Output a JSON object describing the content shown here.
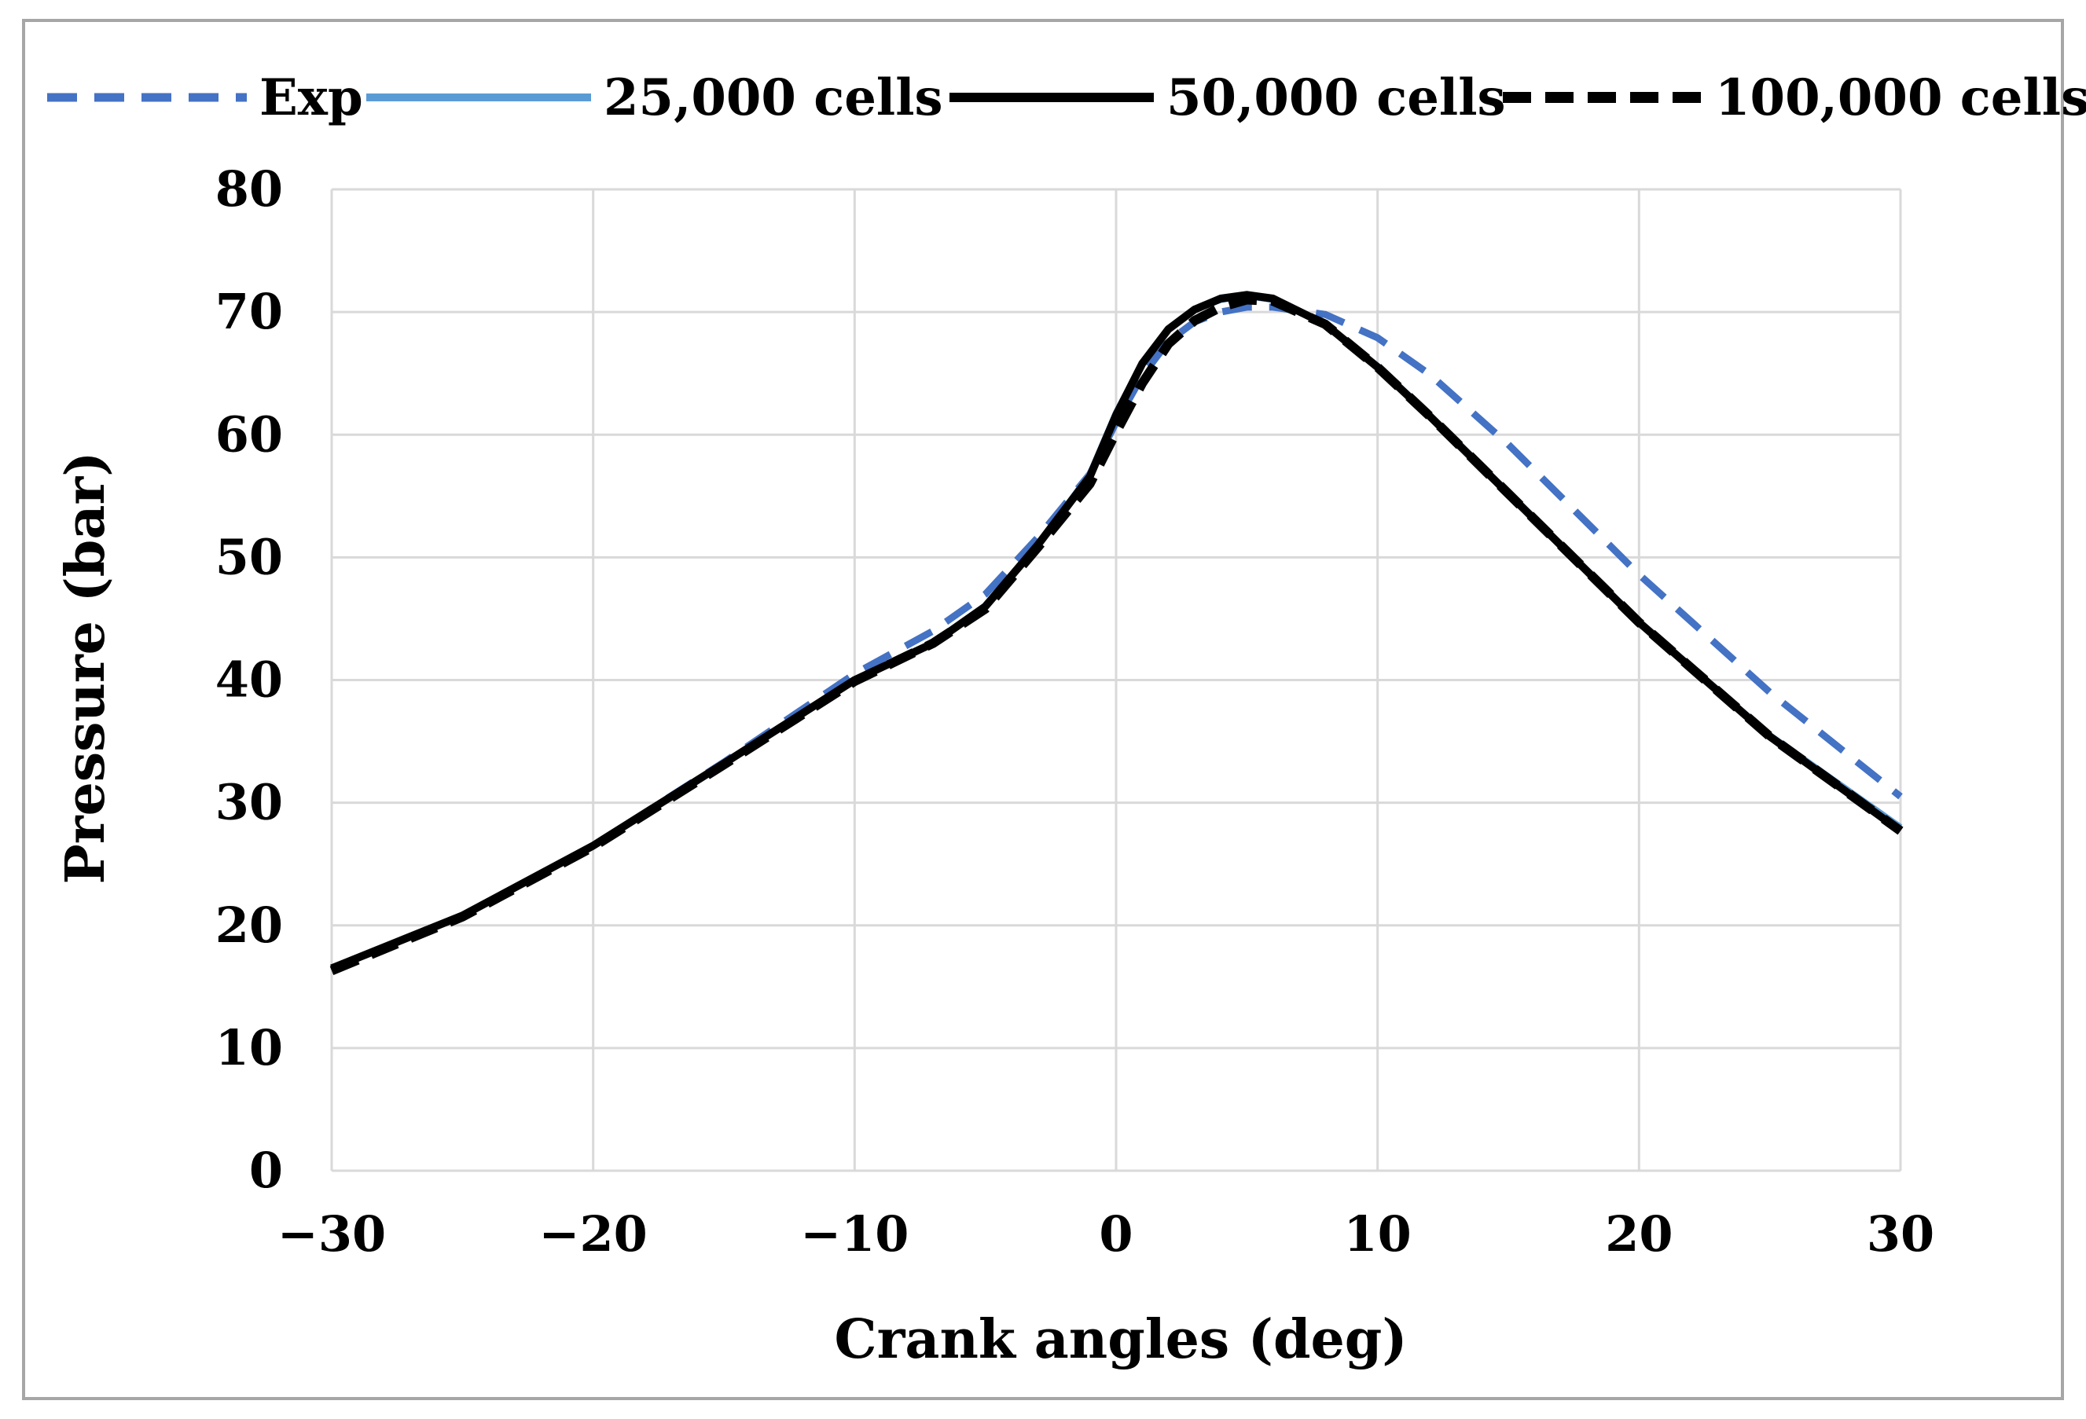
{
  "chart_data": {
    "type": "line",
    "title": "",
    "xlabel": "Crank angles (deg)",
    "ylabel": "Pressure (bar)",
    "xlim": [
      -30,
      30
    ],
    "ylim": [
      0,
      80
    ],
    "xticks": [
      -30,
      -20,
      -10,
      0,
      10,
      20,
      30
    ],
    "xtick_labels": [
      "−30",
      "−20",
      "−10",
      "0",
      "10",
      "20",
      "30"
    ],
    "yticks": [
      0,
      10,
      20,
      30,
      40,
      50,
      60,
      70,
      80
    ],
    "ytick_labels": [
      "0",
      "10",
      "20",
      "30",
      "40",
      "50",
      "60",
      "70",
      "80"
    ],
    "grid": true,
    "legend_position": "top",
    "series": [
      {
        "name": "Exp",
        "color": "#4472c4",
        "style": "dashed",
        "x": [
          -30,
          -25,
          -20,
          -15,
          -10,
          -7,
          -5,
          -3,
          -1,
          0,
          1,
          2,
          3,
          4,
          5,
          6,
          8,
          10,
          12,
          15,
          20,
          25,
          30
        ],
        "y": [
          16.5,
          20.8,
          26.5,
          33.3,
          40.5,
          44.0,
          47.0,
          51.6,
          56.8,
          61.0,
          64.8,
          67.6,
          69.2,
          70.0,
          70.4,
          70.4,
          69.8,
          67.9,
          64.9,
          59.2,
          48.6,
          39.0,
          30.5
        ]
      },
      {
        "name": "25,000 cells",
        "color": "#5b9bd5",
        "style": "solid",
        "x": [
          -30,
          -25,
          -20,
          -15,
          -10,
          -7,
          -5,
          -3,
          -1,
          0,
          1,
          2,
          3,
          4,
          5,
          6,
          8,
          10,
          12,
          15,
          20,
          25,
          30
        ],
        "y": [
          16.5,
          20.8,
          26.5,
          33.2,
          40.0,
          43.0,
          46.0,
          51.0,
          56.8,
          61.8,
          65.8,
          68.6,
          70.2,
          71.0,
          71.3,
          71.0,
          69.0,
          65.6,
          61.6,
          55.3,
          44.8,
          35.5,
          28.0
        ]
      },
      {
        "name": "50,000 cells",
        "color": "#000000",
        "style": "solid",
        "x": [
          -30,
          -25,
          -20,
          -15,
          -10,
          -7,
          -5,
          -3,
          -1,
          0,
          1,
          2,
          3,
          4,
          5,
          6,
          8,
          10,
          12,
          15,
          20,
          25,
          30
        ],
        "y": [
          16.5,
          20.8,
          26.5,
          33.2,
          40.0,
          43.0,
          46.0,
          51.0,
          56.6,
          61.6,
          65.8,
          68.6,
          70.2,
          71.1,
          71.4,
          71.1,
          69.0,
          65.5,
          61.5,
          55.2,
          44.7,
          35.4,
          27.7
        ]
      },
      {
        "name": "100,000 cells",
        "color": "#000000",
        "style": "dashed",
        "x": [
          -30,
          -25,
          -20,
          -15,
          -10,
          -7,
          -5,
          -3,
          -1,
          0,
          1,
          2,
          3,
          4,
          5,
          6,
          8,
          10,
          12,
          15,
          20,
          25,
          30
        ],
        "y": [
          16.3,
          20.7,
          26.4,
          33.1,
          39.9,
          43.0,
          45.8,
          50.8,
          56.0,
          60.2,
          64.2,
          67.4,
          69.3,
          70.4,
          71.0,
          70.9,
          69.0,
          65.5,
          61.5,
          55.2,
          44.7,
          35.4,
          27.7
        ]
      }
    ]
  }
}
